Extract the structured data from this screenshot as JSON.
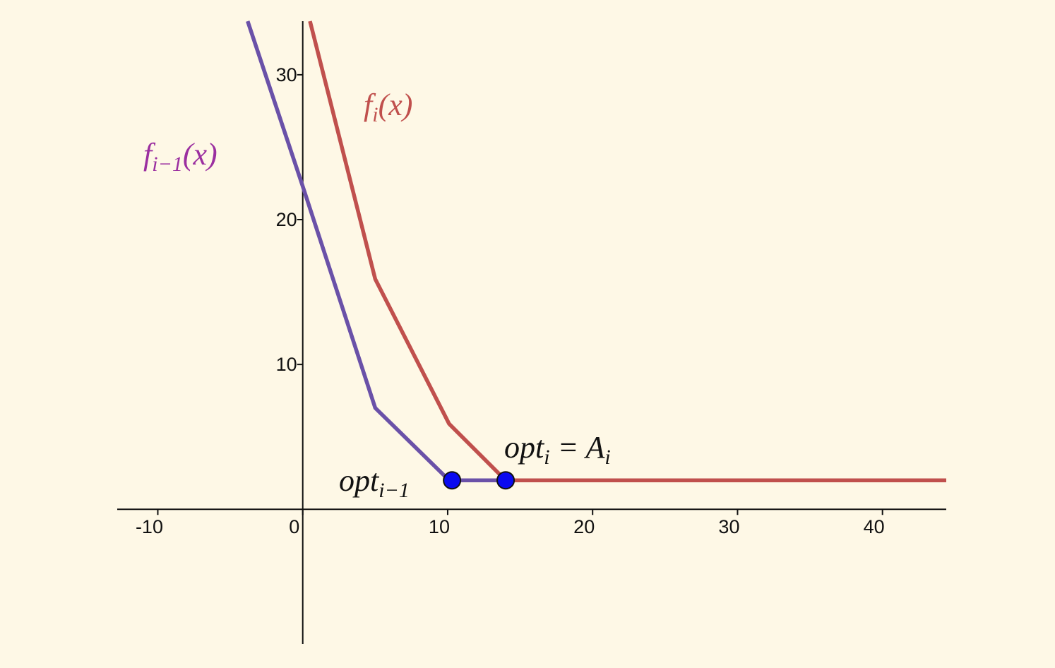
{
  "chart_data": {
    "type": "line",
    "xlim": [
      -12.8,
      44.4
    ],
    "ylim": [
      -9.3,
      33.7
    ],
    "xticks": [
      -10,
      0,
      10,
      20,
      30,
      40
    ],
    "yticks": [
      10,
      20,
      30
    ],
    "series": [
      {
        "color": "#6a51a8",
        "x": [
          -3.8,
          0,
          5,
          10.1,
          14
        ],
        "values": [
          33.7,
          22.3,
          7,
          2,
          2
        ]
      },
      {
        "color": "#c0504d",
        "x": [
          0.5,
          5,
          10.1,
          14,
          44.4
        ],
        "values": [
          33.7,
          15.9,
          5.9,
          2,
          2
        ]
      }
    ],
    "points": {
      "color": "#0a0af0",
      "x": [
        10.3,
        14
      ],
      "values": [
        2,
        2
      ]
    },
    "annotations": [
      {
        "color": "#c0504d",
        "parts": [
          {
            "text": "f"
          },
          {
            "text": "i",
            "sub": true
          },
          {
            "text": "(x)"
          }
        ]
      },
      {
        "color": "#9b2fa0",
        "parts": [
          {
            "text": "f"
          },
          {
            "text": "i−1",
            "sub": true
          },
          {
            "text": "(x)"
          }
        ]
      },
      {
        "color": "#111111",
        "parts": [
          {
            "text": "opt"
          },
          {
            "text": "i",
            "sub": true
          },
          {
            "text": " = A"
          },
          {
            "text": "i",
            "sub": true
          }
        ]
      },
      {
        "color": "#111111",
        "parts": [
          {
            "text": "opt"
          },
          {
            "text": "i−1",
            "sub": true
          }
        ]
      }
    ]
  }
}
